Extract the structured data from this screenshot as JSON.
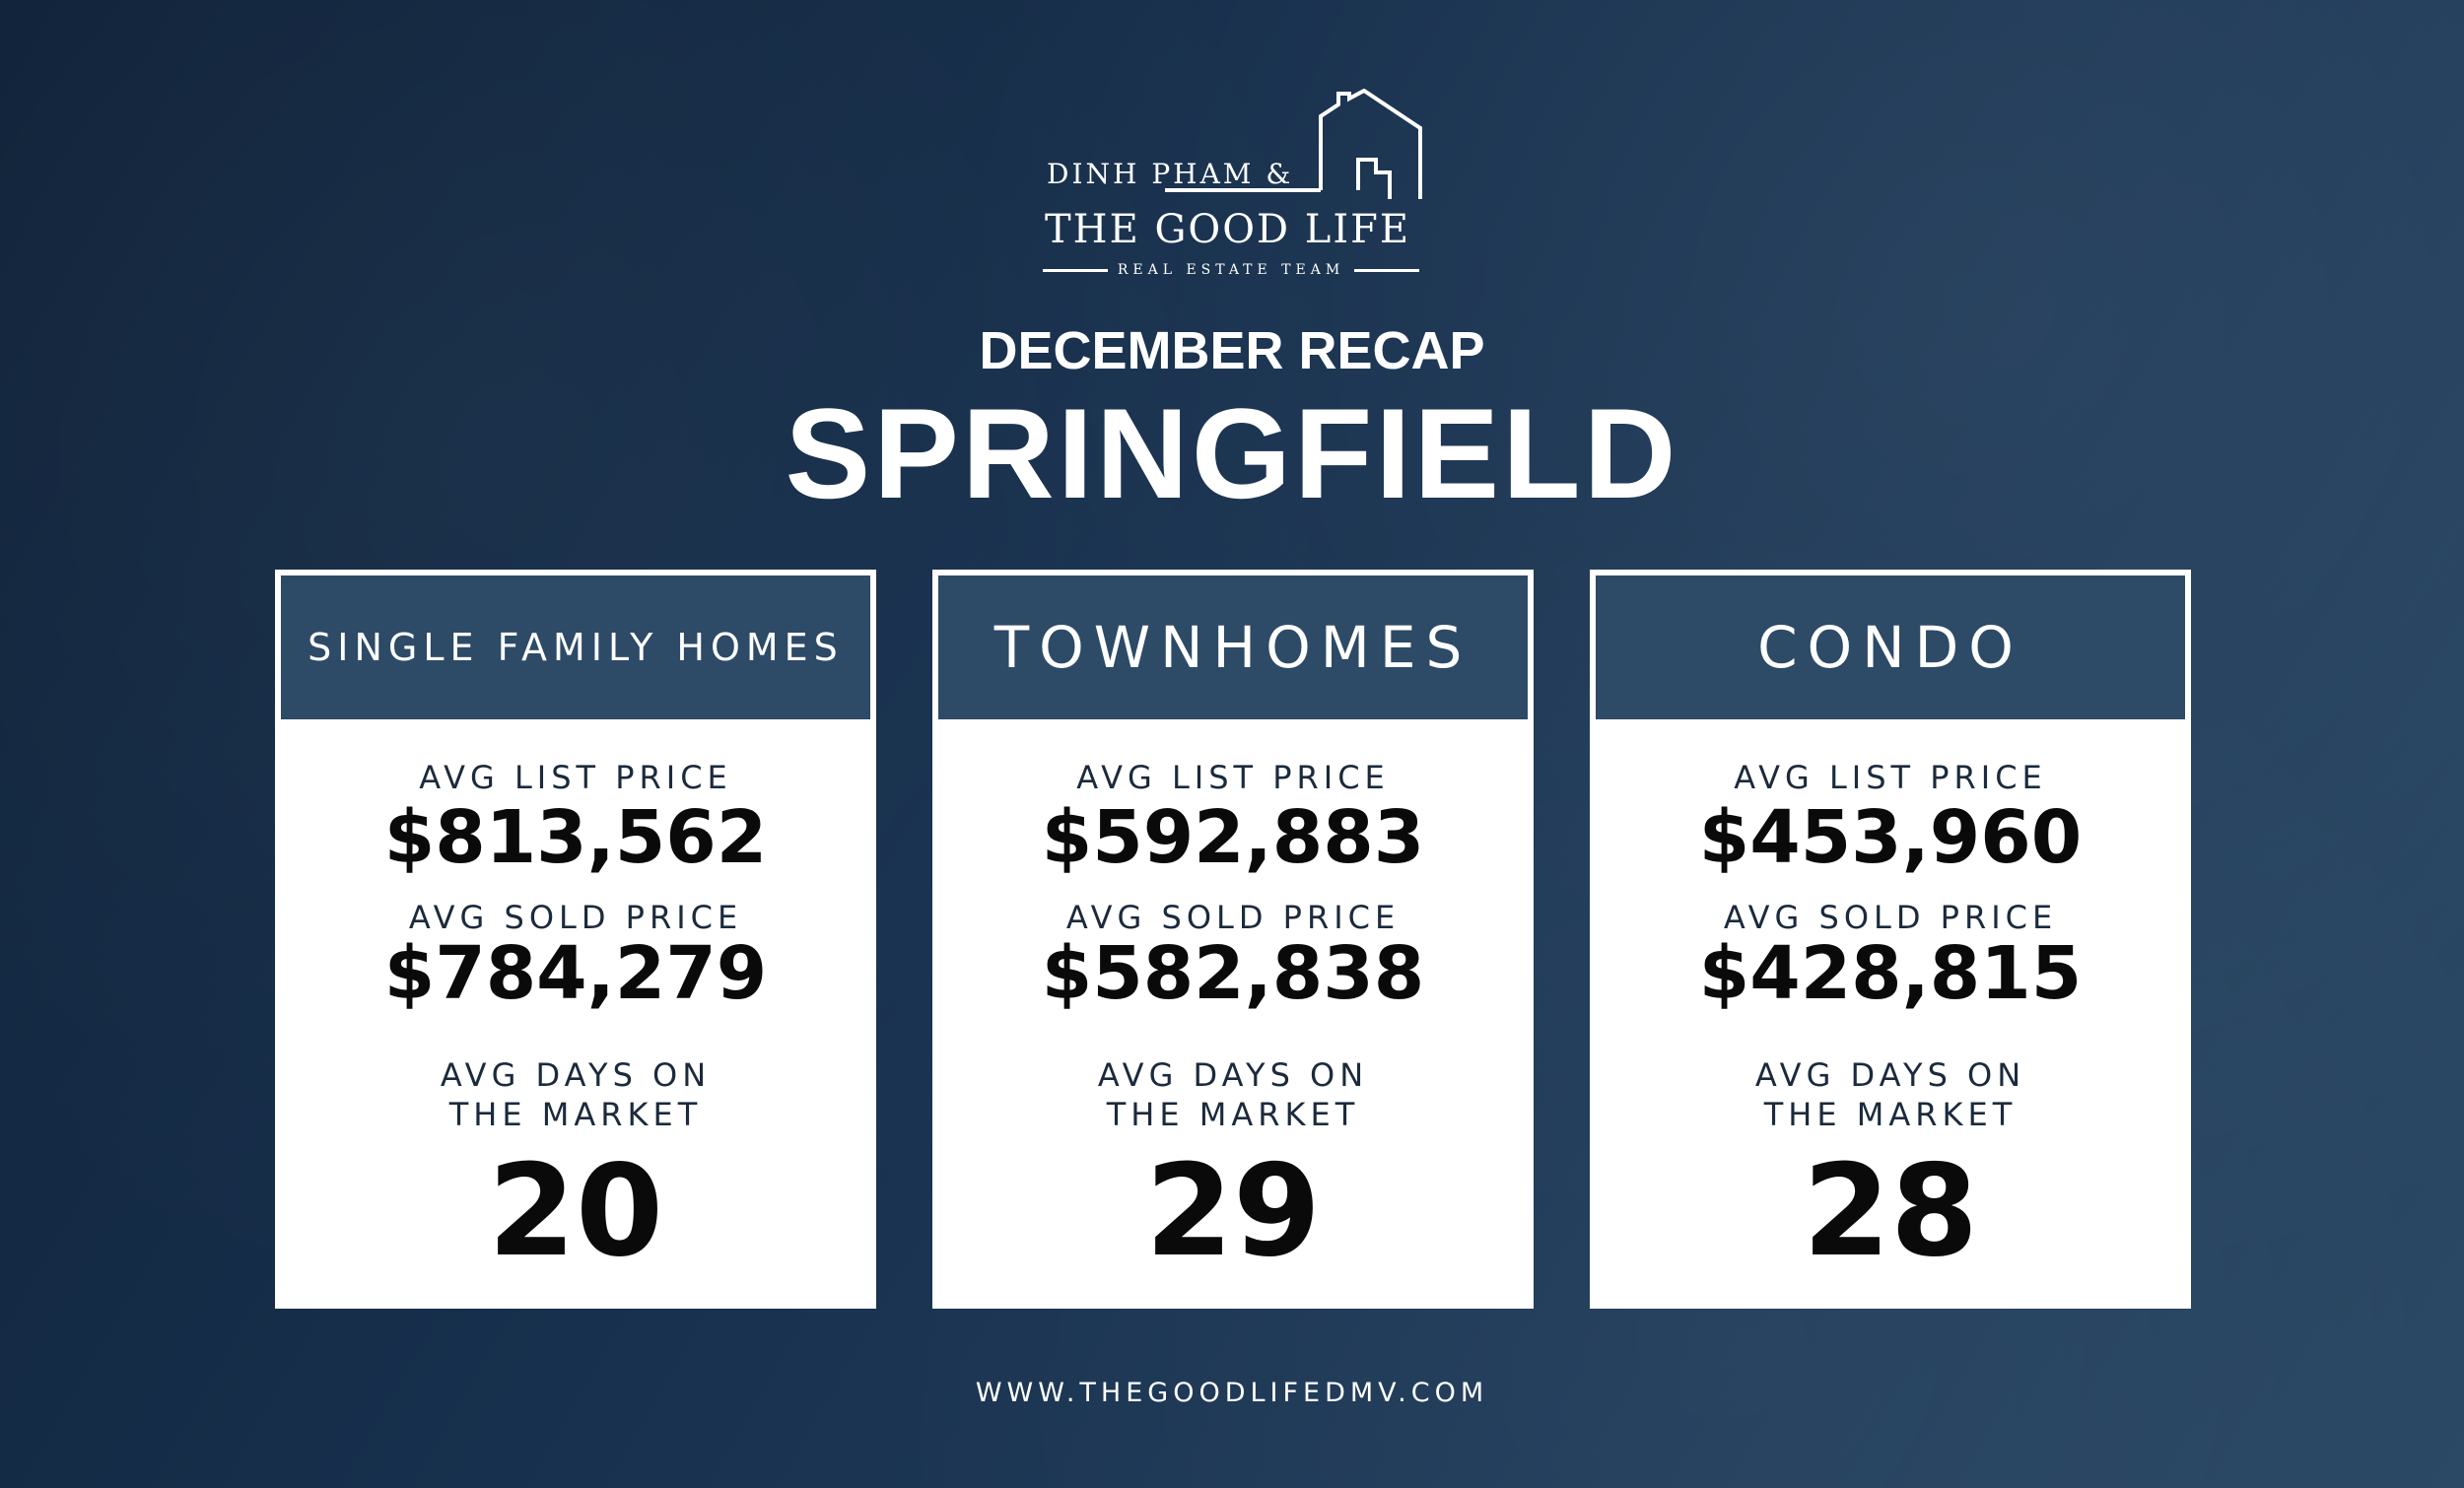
{
  "logo": {
    "line1": "DINH PHAM &",
    "line2": "THE GOOD LIFE",
    "tagline": "REAL ESTATE TEAM",
    "icon": "house-outline-icon"
  },
  "headline": {
    "recap": "DECEMBER RECAP",
    "city": "SPRINGFIELD"
  },
  "cards": [
    {
      "title": "SINGLE FAMILY HOMES",
      "avg_list_label": "AVG LIST PRICE",
      "avg_list_price": "$813,562",
      "avg_sold_label": "AVG SOLD PRICE",
      "avg_sold_price": "$784,279",
      "days_label_1": "AVG DAYS ON",
      "days_label_2": "THE MARKET",
      "days_on_market": "20"
    },
    {
      "title": "TOWNHOMES",
      "avg_list_label": "AVG LIST PRICE",
      "avg_list_price": "$592,883",
      "avg_sold_label": "AVG SOLD PRICE",
      "avg_sold_price": "$582,838",
      "days_label_1": "AVG DAYS ON",
      "days_label_2": "THE MARKET",
      "days_on_market": "29"
    },
    {
      "title": "CONDO",
      "avg_list_label": "AVG LIST PRICE",
      "avg_list_price": "$453,960",
      "avg_sold_label": "AVG SOLD PRICE",
      "avg_sold_price": "$428,815",
      "days_label_1": "AVG DAYS ON",
      "days_label_2": "THE MARKET",
      "days_on_market": "28"
    }
  ],
  "footer": {
    "website": "WWW.THEGOODLIFEDMV.COM"
  },
  "colors": {
    "background": "#17304d",
    "card_header": "#2d4a66",
    "card_body": "#ffffff",
    "text_dark": "#0a0a0a"
  }
}
